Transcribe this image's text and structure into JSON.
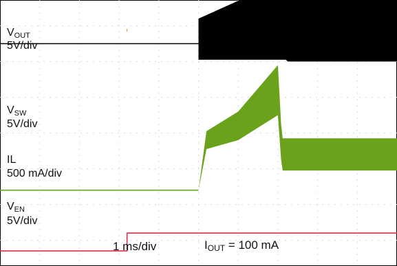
{
  "chart_data": {
    "type": "line",
    "title": "",
    "x_scale": "1 ms/div",
    "annotation": {
      "prefix": "I",
      "sub": "OUT",
      "suffix": " = 100 mA"
    },
    "xlim_divisions": [
      0,
      10
    ],
    "series": [
      {
        "name": "VOUT",
        "name_main": "V",
        "name_sub": "OUT",
        "scale": "5V/div",
        "color": "#3ab7b3",
        "kind": "trace",
        "x_div": [
          0,
          5.1,
          7.0,
          10
        ],
        "y_div": [
          4.7,
          4.7,
          6.1,
          6.1
        ]
      },
      {
        "name": "VSW",
        "name_main": "V",
        "name_sub": "SW",
        "scale": "5V/div",
        "color": "#000000",
        "kind": "switching",
        "x_div": [
          0,
          5.0,
          7.2,
          10
        ],
        "y_low": [
          2.5,
          2.5,
          2.5,
          2.5
        ],
        "y_high": [
          2.5,
          3.2,
          4.3,
          4.3
        ],
        "settled_low_from_div": 7.2
      },
      {
        "name": "IL",
        "name_main": "IL",
        "name_sub": "",
        "scale": "500 mA/div",
        "color": "#6aa21c",
        "kind": "ripple",
        "x_div": [
          0,
          5.0,
          5.2,
          6.0,
          7.0,
          7.1,
          10
        ],
        "y_center": [
          -1.6,
          -1.6,
          -0.2,
          0.2,
          1.2,
          -0.6,
          -0.6
        ],
        "ripple_pp_div": [
          0,
          0,
          0.5,
          0.8,
          1.4,
          0.9,
          0.9
        ]
      },
      {
        "name": "VEN",
        "name_main": "V",
        "name_sub": "EN",
        "scale": "5V/div",
        "color": "#d8324b",
        "kind": "step",
        "x_div": [
          0,
          3.2,
          3.2,
          10
        ],
        "y_div": [
          -3.3,
          -3.3,
          -2.8,
          -2.8
        ]
      }
    ],
    "grid": true
  }
}
